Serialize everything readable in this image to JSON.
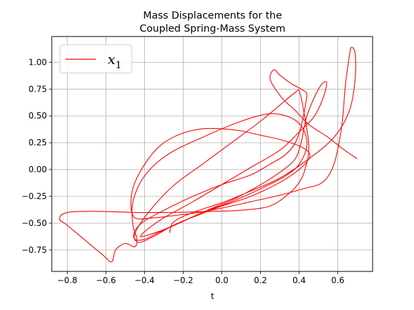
{
  "chart_data": {
    "type": "line",
    "title_line1": "Mass Displacements for the",
    "title_line2": "Coupled Spring-Mass System",
    "xlabel": "t",
    "ylabel": "",
    "xlim": [
      -0.88,
      0.78
    ],
    "ylim": [
      -0.95,
      1.24
    ],
    "x_ticks": [
      -0.8,
      -0.6,
      -0.4,
      -0.2,
      0.0,
      0.2,
      0.4,
      0.6
    ],
    "x_tick_labels": [
      "−0.8",
      "−0.6",
      "−0.4",
      "−0.2",
      "0.0",
      "0.2",
      "0.4",
      "0.6"
    ],
    "y_ticks": [
      -0.75,
      -0.5,
      -0.25,
      0.0,
      0.25,
      0.5,
      0.75,
      1.0
    ],
    "y_tick_labels": [
      "−0.75",
      "−0.50",
      "−0.25",
      "0.00",
      "0.25",
      "0.50",
      "0.75",
      "1.00"
    ],
    "grid": true,
    "legend_position": "upper-left",
    "line_color": "#ff0000",
    "series": [
      {
        "name": "x_1",
        "legend_base": "x",
        "legend_sub": "1",
        "color": "#ff0000",
        "points": [
          [
            0.7,
            0.1
          ],
          [
            0.62,
            0.2
          ],
          [
            0.55,
            0.3
          ],
          [
            0.45,
            0.42
          ],
          [
            0.38,
            0.55
          ],
          [
            0.31,
            0.67
          ],
          [
            0.25,
            0.84
          ],
          [
            0.27,
            0.93
          ],
          [
            0.3,
            0.88
          ],
          [
            0.36,
            0.8
          ],
          [
            0.42,
            0.74
          ],
          [
            0.44,
            0.7
          ],
          [
            0.43,
            0.58
          ],
          [
            0.41,
            0.4
          ],
          [
            0.38,
            0.25
          ],
          [
            0.33,
            0.14
          ],
          [
            0.25,
            0.05
          ],
          [
            0.15,
            -0.05
          ],
          [
            0.0,
            -0.14
          ],
          [
            -0.15,
            -0.25
          ],
          [
            -0.3,
            -0.38
          ],
          [
            -0.4,
            -0.48
          ],
          [
            -0.45,
            -0.57
          ],
          [
            -0.45,
            -0.65
          ],
          [
            -0.4,
            -0.65
          ],
          [
            -0.32,
            -0.58
          ],
          [
            -0.22,
            -0.5
          ],
          [
            -0.1,
            -0.4
          ],
          [
            0.05,
            -0.3
          ],
          [
            0.2,
            -0.18
          ],
          [
            0.33,
            -0.06
          ],
          [
            0.4,
            0.05
          ],
          [
            0.44,
            0.22
          ],
          [
            0.42,
            0.38
          ],
          [
            0.36,
            0.48
          ],
          [
            0.25,
            0.52
          ],
          [
            0.1,
            0.45
          ],
          [
            -0.1,
            0.3
          ],
          [
            -0.28,
            0.14
          ],
          [
            -0.4,
            -0.06
          ],
          [
            -0.46,
            -0.3
          ],
          [
            -0.46,
            -0.52
          ],
          [
            -0.44,
            -0.64
          ],
          [
            -0.45,
            -0.72
          ],
          [
            -0.5,
            -0.69
          ],
          [
            -0.55,
            -0.75
          ],
          [
            -0.57,
            -0.86
          ],
          [
            -0.62,
            -0.79
          ],
          [
            -0.72,
            -0.64
          ],
          [
            -0.8,
            -0.52
          ],
          [
            -0.84,
            -0.46
          ],
          [
            -0.8,
            -0.4
          ],
          [
            -0.65,
            -0.39
          ],
          [
            -0.45,
            -0.4
          ],
          [
            -0.25,
            -0.4
          ],
          [
            -0.05,
            -0.39
          ],
          [
            0.1,
            -0.38
          ],
          [
            0.25,
            -0.34
          ],
          [
            0.35,
            -0.22
          ],
          [
            0.4,
            -0.12
          ],
          [
            0.43,
            0.0
          ],
          [
            0.45,
            0.22
          ],
          [
            0.42,
            0.58
          ],
          [
            0.4,
            0.73
          ],
          [
            0.38,
            0.72
          ],
          [
            0.3,
            0.6
          ],
          [
            0.2,
            0.45
          ],
          [
            0.05,
            0.25
          ],
          [
            -0.1,
            0.05
          ],
          [
            -0.25,
            -0.15
          ],
          [
            -0.38,
            -0.4
          ],
          [
            -0.45,
            -0.6
          ],
          [
            -0.43,
            -0.68
          ],
          [
            -0.35,
            -0.62
          ],
          [
            -0.25,
            -0.52
          ],
          [
            -0.15,
            -0.44
          ],
          [
            -0.05,
            -0.36
          ],
          [
            0.08,
            -0.26
          ],
          [
            0.22,
            -0.12
          ],
          [
            0.32,
            0.0
          ],
          [
            0.38,
            0.1
          ],
          [
            0.41,
            0.25
          ],
          [
            0.44,
            0.5
          ],
          [
            0.5,
            0.75
          ],
          [
            0.54,
            0.82
          ],
          [
            0.53,
            0.7
          ],
          [
            0.48,
            0.5
          ],
          [
            0.4,
            0.35
          ],
          [
            0.3,
            0.18
          ],
          [
            0.15,
            0.02
          ],
          [
            0.0,
            -0.14
          ],
          [
            -0.15,
            -0.3
          ],
          [
            -0.3,
            -0.45
          ],
          [
            -0.38,
            -0.55
          ],
          [
            -0.42,
            -0.62
          ],
          [
            -0.4,
            -0.62
          ],
          [
            -0.3,
            -0.56
          ],
          [
            -0.2,
            -0.48
          ],
          [
            -0.1,
            -0.41
          ],
          [
            0.0,
            -0.34
          ],
          [
            0.15,
            -0.25
          ],
          [
            0.3,
            -0.12
          ],
          [
            0.4,
            0.0
          ],
          [
            0.45,
            0.1
          ],
          [
            0.45,
            0.16
          ],
          [
            0.4,
            0.22
          ],
          [
            0.3,
            0.28
          ],
          [
            0.2,
            0.32
          ],
          [
            0.1,
            0.36
          ],
          [
            0.0,
            0.38
          ],
          [
            -0.1,
            0.38
          ],
          [
            -0.2,
            0.34
          ],
          [
            -0.3,
            0.25
          ],
          [
            -0.38,
            0.1
          ],
          [
            -0.45,
            -0.12
          ],
          [
            -0.47,
            -0.3
          ],
          [
            -0.45,
            -0.45
          ],
          [
            -0.35,
            -0.45
          ],
          [
            -0.25,
            -0.43
          ],
          [
            -0.12,
            -0.4
          ],
          [
            0.0,
            -0.36
          ],
          [
            0.15,
            -0.3
          ],
          [
            0.3,
            -0.24
          ],
          [
            0.42,
            -0.18
          ],
          [
            0.52,
            -0.12
          ],
          [
            0.58,
            0.05
          ],
          [
            0.62,
            0.4
          ],
          [
            0.64,
            0.8
          ],
          [
            0.66,
            1.06
          ],
          [
            0.67,
            1.14
          ],
          [
            0.69,
            1.08
          ],
          [
            0.69,
            0.85
          ],
          [
            0.66,
            0.55
          ],
          [
            0.58,
            0.3
          ],
          [
            0.45,
            0.1
          ],
          [
            0.3,
            -0.08
          ],
          [
            0.15,
            -0.2
          ],
          [
            0.0,
            -0.31
          ],
          [
            -0.15,
            -0.4
          ],
          [
            -0.25,
            -0.49
          ],
          [
            -0.27,
            -0.59
          ]
        ]
      }
    ]
  }
}
